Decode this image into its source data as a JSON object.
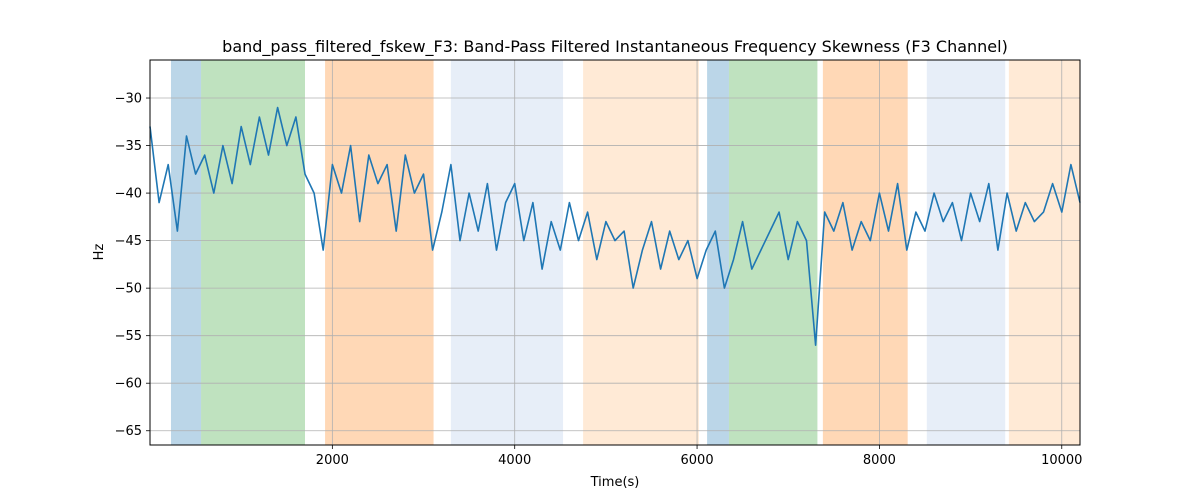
{
  "chart_data": {
    "type": "line",
    "title": "band_pass_filtered_fskew_F3: Band-Pass Filtered Instantaneous Frequency Skewness (F3 Channel)",
    "xlabel": "Time(s)",
    "ylabel": "Hz",
    "xlim": [
      0,
      10200
    ],
    "ylim": [
      -66.5,
      -26
    ],
    "x_ticks": [
      2000,
      4000,
      6000,
      8000,
      10000
    ],
    "y_ticks": [
      -30,
      -35,
      -40,
      -45,
      -50,
      -55,
      -60,
      -65
    ],
    "x_tick_labels": [
      "2000",
      "4000",
      "6000",
      "8000",
      "10000"
    ],
    "y_tick_labels": [
      "−30",
      "−35",
      "−40",
      "−45",
      "−50",
      "−55",
      "−60",
      "−65"
    ],
    "grid": true,
    "line_color": "#1f77b4",
    "bands": [
      {
        "x0": 230,
        "x1": 560,
        "color": "#1f77b4",
        "alpha": 0.3
      },
      {
        "x0": 560,
        "x1": 1700,
        "color": "#2ca02c",
        "alpha": 0.3
      },
      {
        "x0": 1920,
        "x1": 3110,
        "color": "#ff7f0e",
        "alpha": 0.3
      },
      {
        "x0": 3300,
        "x1": 4530,
        "color": "#aec7e8",
        "alpha": 0.3
      },
      {
        "x0": 4750,
        "x1": 6020,
        "color": "#ffbb78",
        "alpha": 0.3
      },
      {
        "x0": 6110,
        "x1": 6350,
        "color": "#1f77b4",
        "alpha": 0.3
      },
      {
        "x0": 6350,
        "x1": 7320,
        "color": "#2ca02c",
        "alpha": 0.3
      },
      {
        "x0": 7380,
        "x1": 8310,
        "color": "#ff7f0e",
        "alpha": 0.3
      },
      {
        "x0": 8520,
        "x1": 9380,
        "color": "#aec7e8",
        "alpha": 0.3
      },
      {
        "x0": 9420,
        "x1": 10200,
        "color": "#ffbb78",
        "alpha": 0.3
      }
    ],
    "series": [
      {
        "x": [
          0,
          100,
          200,
          300,
          400,
          500,
          600,
          700,
          800,
          900,
          1000,
          1100,
          1200,
          1300,
          1400,
          1500,
          1600,
          1700,
          1800,
          1900,
          2000,
          2100,
          2200,
          2300,
          2400,
          2500,
          2600,
          2700,
          2800,
          2900,
          3000,
          3100,
          3200,
          3300,
          3400,
          3500,
          3600,
          3700,
          3800,
          3900,
          4000,
          4100,
          4200,
          4300,
          4400,
          4500,
          4600,
          4700,
          4800,
          4900,
          5000,
          5100,
          5200,
          5300,
          5400,
          5500,
          5600,
          5700,
          5800,
          5900,
          6000,
          6100,
          6200,
          6300,
          6400,
          6500,
          6600,
          6700,
          6800,
          6900,
          7000,
          7100,
          7200,
          7300,
          7400,
          7500,
          7600,
          7700,
          7800,
          7900,
          8000,
          8100,
          8200,
          8300,
          8400,
          8500,
          8600,
          8700,
          8800,
          8900,
          9000,
          9100,
          9200,
          9300,
          9400,
          9500,
          9600,
          9700,
          9800,
          9900,
          10000,
          10100,
          10200
        ],
        "y": [
          -33,
          -41,
          -37,
          -44,
          -34,
          -38,
          -36,
          -40,
          -35,
          -39,
          -33,
          -37,
          -32,
          -36,
          -31,
          -35,
          -32,
          -38,
          -40,
          -46,
          -37,
          -40,
          -35,
          -43,
          -36,
          -39,
          -37,
          -44,
          -36,
          -40,
          -38,
          -46,
          -42,
          -37,
          -45,
          -40,
          -44,
          -39,
          -46,
          -41,
          -39,
          -45,
          -41,
          -48,
          -43,
          -46,
          -41,
          -45,
          -42,
          -47,
          -43,
          -45,
          -44,
          -50,
          -46,
          -43,
          -48,
          -44,
          -47,
          -45,
          -49,
          -46,
          -44,
          -50,
          -47,
          -43,
          -48,
          -46,
          -44,
          -42,
          -47,
          -43,
          -45,
          -56,
          -42,
          -44,
          -41,
          -46,
          -43,
          -45,
          -40,
          -44,
          -39,
          -46,
          -42,
          -44,
          -40,
          -43,
          -41,
          -45,
          -40,
          -43,
          -39,
          -46,
          -40,
          -44,
          -41,
          -43,
          -42,
          -39,
          -42,
          -37,
          -41
        ]
      }
    ]
  }
}
